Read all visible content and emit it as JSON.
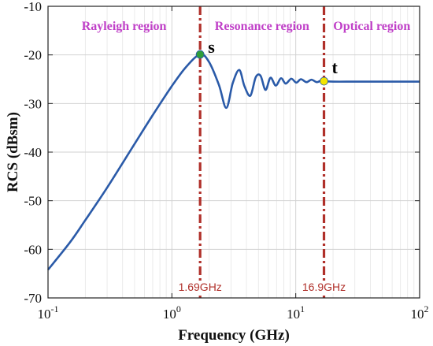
{
  "chart_data": {
    "type": "line",
    "xlabel": "Frequency (GHz)",
    "ylabel": "RCS (dBsm)",
    "x_scale": "log",
    "xlim": [
      0.1,
      100
    ],
    "ylim": [
      -70,
      -10
    ],
    "x_ticks": [
      {
        "value": 0.1,
        "base": "10",
        "exp": "-1"
      },
      {
        "value": 1,
        "base": "10",
        "exp": "0"
      },
      {
        "value": 10,
        "base": "10",
        "exp": "1"
      },
      {
        "value": 100,
        "base": "10",
        "exp": "2"
      }
    ],
    "y_ticks": [
      -70,
      -60,
      -50,
      -40,
      -30,
      -20,
      -10
    ],
    "y_tick_labels": [
      "-70",
      "-60",
      "-50",
      "-40",
      "-30",
      "-20",
      "-10"
    ],
    "grid": true,
    "series": [
      {
        "color": "#2a5aa8",
        "x": [
          0.1,
          0.15,
          0.2,
          0.3,
          0.5,
          0.7,
          1.0,
          1.3,
          1.69,
          2.0,
          2.4,
          2.75,
          3.1,
          3.5,
          3.85,
          4.3,
          4.75,
          5.2,
          5.7,
          6.25,
          6.9,
          7.6,
          8.3,
          9.2,
          10.1,
          11.0,
          12.2,
          13.4,
          14.8,
          16.2,
          16.9,
          20.0,
          30.0,
          50.0,
          100.0
        ],
        "y": [
          -64.2,
          -58.6,
          -54.0,
          -47.3,
          -38.3,
          -32.4,
          -26.4,
          -22.5,
          -19.9,
          -21.5,
          -26.2,
          -30.9,
          -25.8,
          -23.1,
          -26.4,
          -28.4,
          -24.6,
          -24.3,
          -27.2,
          -24.7,
          -26.3,
          -24.8,
          -25.9,
          -24.9,
          -25.7,
          -25.0,
          -25.6,
          -25.1,
          -25.6,
          -25.2,
          -25.4,
          -25.5,
          -25.5,
          -25.5,
          -25.5
        ]
      }
    ],
    "regions": [
      {
        "label": "Rayleigh region",
        "color": "#c040c8"
      },
      {
        "label": "Resonance region",
        "color": "#c040c8"
      },
      {
        "label": "Optical region",
        "color": "#c040c8"
      }
    ],
    "boundaries": [
      {
        "x": 1.69,
        "label": "1.69GHz",
        "color": "#b0302a"
      },
      {
        "x": 16.9,
        "label": "16.9GHz",
        "color": "#b0302a"
      }
    ],
    "points": [
      {
        "label": "s",
        "x": 1.69,
        "y": -19.9,
        "color": "#2e9e3a"
      },
      {
        "label": "t",
        "x": 16.9,
        "y": -25.4,
        "color": "#f2e400"
      }
    ]
  }
}
